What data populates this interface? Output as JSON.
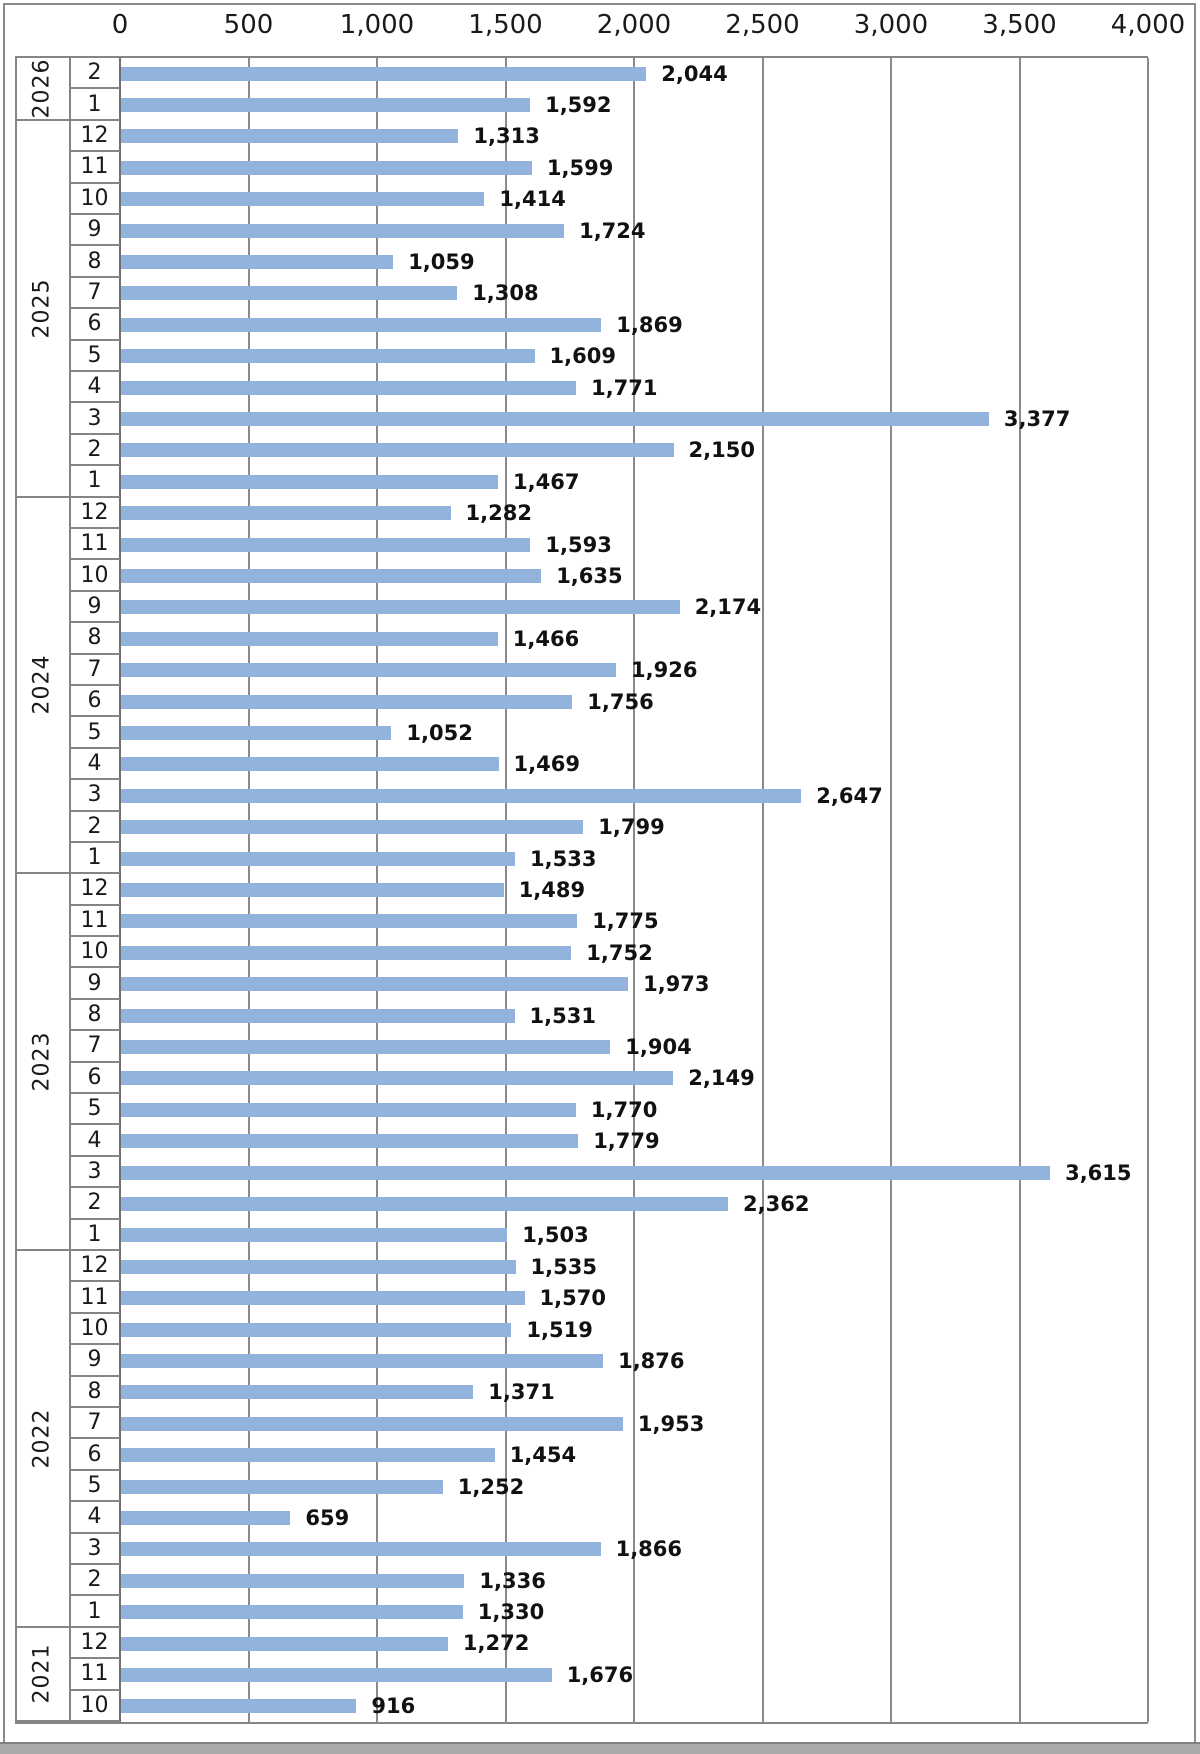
{
  "chart_data": {
    "type": "bar",
    "orientation": "horizontal",
    "title": "",
    "data_labels": true,
    "legend": "none",
    "value_axis": {
      "position": "top",
      "min": 0,
      "max": 4000,
      "tick_interval": 500,
      "tick_values": [
        0,
        500,
        1000,
        1500,
        2000,
        2500,
        3000,
        3500,
        4000
      ],
      "tick_labels": [
        "0",
        "500",
        "1,000",
        "1,500",
        "2,000",
        "2,500",
        "3,000",
        "3,500",
        "4,000"
      ],
      "grid": true
    },
    "category_axis": {
      "position": "left",
      "group_label": "year",
      "item_label": "month"
    },
    "colors": {
      "bar": "#92b4dc",
      "grid": "#8a8a8a",
      "axis_line": "#707070",
      "data_label": "#111111",
      "tick_label": "#1a1a1a",
      "frame": "#8a8a8a",
      "bottom_band": "#aaaaaa"
    },
    "groups": [
      {
        "year": "2026",
        "rows": [
          {
            "month": "2",
            "value": 2044,
            "label": "2,044"
          },
          {
            "month": "1",
            "value": 1592,
            "label": "1,592"
          }
        ]
      },
      {
        "year": "2025",
        "rows": [
          {
            "month": "12",
            "value": 1313,
            "label": "1,313"
          },
          {
            "month": "11",
            "value": 1599,
            "label": "1,599"
          },
          {
            "month": "10",
            "value": 1414,
            "label": "1,414"
          },
          {
            "month": "9",
            "value": 1724,
            "label": "1,724"
          },
          {
            "month": "8",
            "value": 1059,
            "label": "1,059"
          },
          {
            "month": "7",
            "value": 1308,
            "label": "1,308"
          },
          {
            "month": "6",
            "value": 1869,
            "label": "1,869"
          },
          {
            "month": "5",
            "value": 1609,
            "label": "1,609"
          },
          {
            "month": "4",
            "value": 1771,
            "label": "1,771"
          },
          {
            "month": "3",
            "value": 3377,
            "label": "3,377"
          },
          {
            "month": "2",
            "value": 2150,
            "label": "2,150"
          },
          {
            "month": "1",
            "value": 1467,
            "label": "1,467"
          }
        ]
      },
      {
        "year": "2024",
        "rows": [
          {
            "month": "12",
            "value": 1282,
            "label": "1,282"
          },
          {
            "month": "11",
            "value": 1593,
            "label": "1,593"
          },
          {
            "month": "10",
            "value": 1635,
            "label": "1,635"
          },
          {
            "month": "9",
            "value": 2174,
            "label": "2,174"
          },
          {
            "month": "8",
            "value": 1466,
            "label": "1,466"
          },
          {
            "month": "7",
            "value": 1926,
            "label": "1,926"
          },
          {
            "month": "6",
            "value": 1756,
            "label": "1,756"
          },
          {
            "month": "5",
            "value": 1052,
            "label": "1,052"
          },
          {
            "month": "4",
            "value": 1469,
            "label": "1,469"
          },
          {
            "month": "3",
            "value": 2647,
            "label": "2,647"
          },
          {
            "month": "2",
            "value": 1799,
            "label": "1,799"
          },
          {
            "month": "1",
            "value": 1533,
            "label": "1,533"
          }
        ]
      },
      {
        "year": "2023",
        "rows": [
          {
            "month": "12",
            "value": 1489,
            "label": "1,489"
          },
          {
            "month": "11",
            "value": 1775,
            "label": "1,775"
          },
          {
            "month": "10",
            "value": 1752,
            "label": "1,752"
          },
          {
            "month": "9",
            "value": 1973,
            "label": "1,973"
          },
          {
            "month": "8",
            "value": 1531,
            "label": "1,531"
          },
          {
            "month": "7",
            "value": 1904,
            "label": "1,904"
          },
          {
            "month": "6",
            "value": 2149,
            "label": "2,149"
          },
          {
            "month": "5",
            "value": 1770,
            "label": "1,770"
          },
          {
            "month": "4",
            "value": 1779,
            "label": "1,779"
          },
          {
            "month": "3",
            "value": 3615,
            "label": "3,615"
          },
          {
            "month": "2",
            "value": 2362,
            "label": "2,362"
          },
          {
            "month": "1",
            "value": 1503,
            "label": "1,503"
          }
        ]
      },
      {
        "year": "2022",
        "rows": [
          {
            "month": "12",
            "value": 1535,
            "label": "1,535"
          },
          {
            "month": "11",
            "value": 1570,
            "label": "1,570"
          },
          {
            "month": "10",
            "value": 1519,
            "label": "1,519"
          },
          {
            "month": "9",
            "value": 1876,
            "label": "1,876"
          },
          {
            "month": "8",
            "value": 1371,
            "label": "1,371"
          },
          {
            "month": "7",
            "value": 1953,
            "label": "1,953"
          },
          {
            "month": "6",
            "value": 1454,
            "label": "1,454"
          },
          {
            "month": "5",
            "value": 1252,
            "label": "1,252"
          },
          {
            "month": "4",
            "value": 659,
            "label": "659"
          },
          {
            "month": "3",
            "value": 1866,
            "label": "1,866"
          },
          {
            "month": "2",
            "value": 1336,
            "label": "1,336"
          },
          {
            "month": "1",
            "value": 1330,
            "label": "1,330"
          }
        ]
      },
      {
        "year": "2021",
        "rows": [
          {
            "month": "12",
            "value": 1272,
            "label": "1,272"
          },
          {
            "month": "11",
            "value": 1676,
            "label": "1,676"
          },
          {
            "month": "10",
            "value": 916,
            "label": "916"
          }
        ]
      }
    ]
  }
}
